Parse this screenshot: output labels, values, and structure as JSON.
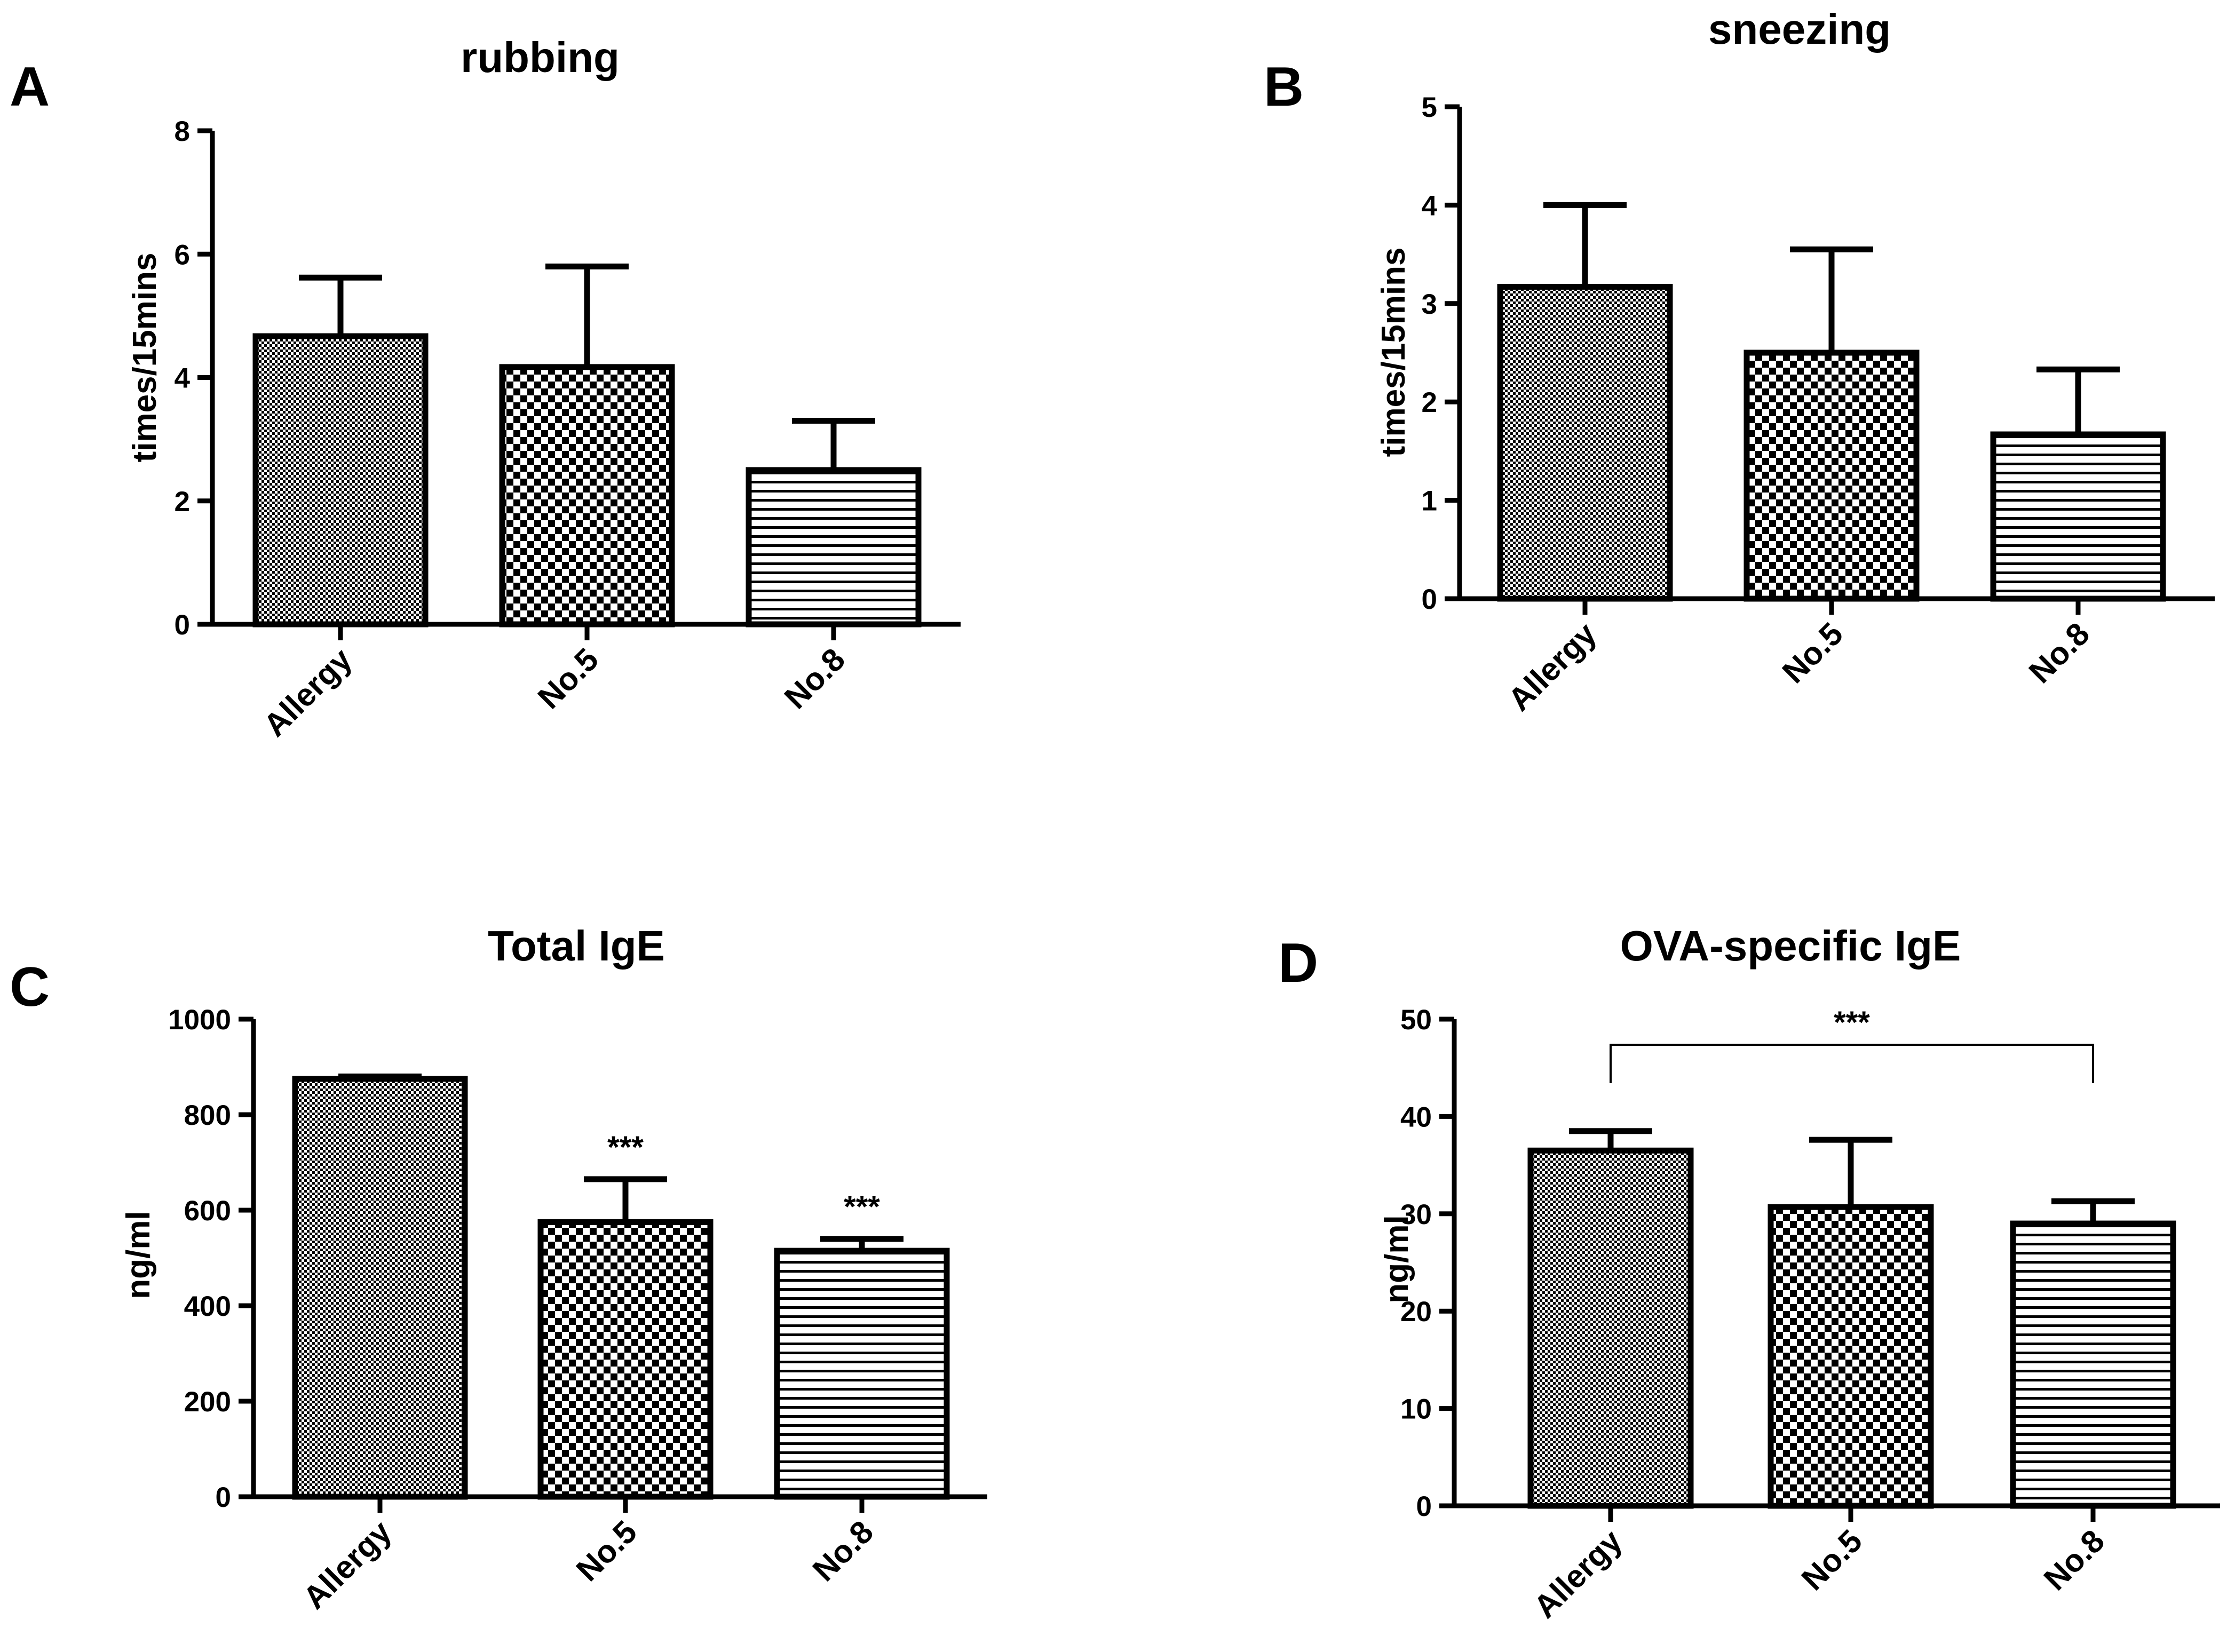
{
  "chart_data": [
    {
      "id": "A",
      "type": "bar",
      "panel_label": "A",
      "title": "rubbing",
      "xlabel": "",
      "ylabel": "times/15mins",
      "ylim": [
        0,
        8
      ],
      "yticks": [
        0,
        2,
        4,
        6,
        8
      ],
      "categories": [
        "Allergy",
        "No.5",
        "No.8"
      ],
      "values": [
        4.67,
        4.17,
        2.5
      ],
      "errors": [
        0.95,
        1.63,
        0.8
      ],
      "patterns": [
        "dense",
        "checker",
        "hstripes"
      ],
      "significance": []
    },
    {
      "id": "B",
      "type": "bar",
      "panel_label": "B",
      "title": "sneezing",
      "xlabel": "",
      "ylabel": "times/15mins",
      "ylim": [
        0,
        5
      ],
      "yticks": [
        0,
        1,
        2,
        3,
        4,
        5
      ],
      "categories": [
        "Allergy",
        "No.5",
        "No.8"
      ],
      "values": [
        3.17,
        2.5,
        1.67
      ],
      "errors": [
        0.83,
        1.05,
        0.66
      ],
      "patterns": [
        "dense",
        "checker",
        "hstripes"
      ],
      "significance": []
    },
    {
      "id": "C",
      "type": "bar",
      "panel_label": "C",
      "title": "Total IgE",
      "xlabel": "",
      "ylabel": "ng/ml",
      "ylim": [
        0,
        1000
      ],
      "yticks": [
        0,
        200,
        400,
        600,
        800,
        1000
      ],
      "categories": [
        "Allergy",
        "No.5",
        "No.8"
      ],
      "values": [
        875,
        575,
        515
      ],
      "errors": [
        5,
        90,
        25
      ],
      "patterns": [
        "dense",
        "checker",
        "hstripes"
      ],
      "significance": [
        {
          "category": "No.5",
          "label": "***"
        },
        {
          "category": "No.8",
          "label": "***"
        }
      ]
    },
    {
      "id": "D",
      "type": "bar",
      "panel_label": "D",
      "title": "OVA-specific IgE",
      "xlabel": "",
      "ylabel": "ng/ml",
      "ylim": [
        0,
        50
      ],
      "yticks": [
        0,
        10,
        20,
        30,
        40,
        50
      ],
      "categories": [
        "Allergy",
        "No.5",
        "No.8"
      ],
      "values": [
        36.5,
        30.7,
        29
      ],
      "errors": [
        2,
        6.9,
        2.3
      ],
      "patterns": [
        "dense",
        "checker",
        "hstripes"
      ],
      "significance": [
        {
          "from": "Allergy",
          "to": "No.8",
          "label": "***",
          "bracket": true
        }
      ]
    }
  ]
}
